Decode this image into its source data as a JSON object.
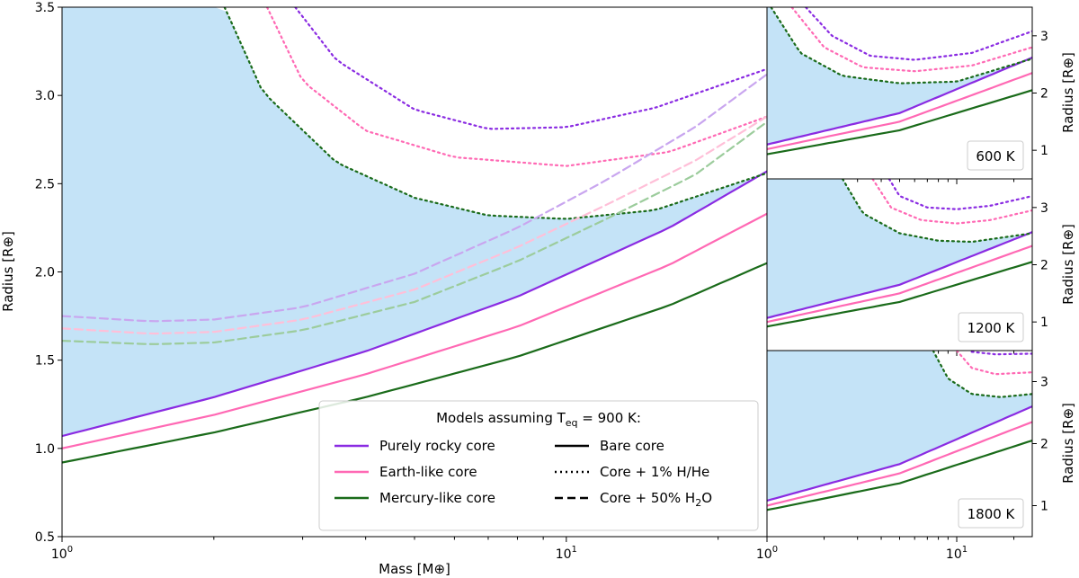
{
  "chart_data": [
    {
      "type": "line",
      "panel": "main",
      "xscale": "log",
      "xlim": [
        1,
        25
      ],
      "ylim": [
        0.5,
        3.5
      ],
      "xlabel": "Mass [M⊕]",
      "ylabel": "Radius [R⊕]",
      "xticks": [
        {
          "value": 1,
          "label": "10^0"
        },
        {
          "value": 10,
          "label": "10^1"
        }
      ],
      "yticks": [
        0.5,
        1.0,
        1.5,
        2.0,
        2.5,
        3.0,
        3.5
      ],
      "ytick_labels": [
        "0.5",
        "1.0",
        "1.5",
        "2.0",
        "2.5",
        "3.0",
        "3.5"
      ],
      "shaded_region": {
        "color": "#c4e3f7",
        "between": [
          "Purely rocky core bare",
          "Mercury-like core + 1% H/He"
        ]
      },
      "series": [
        {
          "name": "Purely rocky core bare",
          "color": "#8a2be2",
          "style": "solid",
          "x": [
            1,
            2,
            4,
            8,
            16,
            25
          ],
          "y": [
            1.07,
            1.29,
            1.55,
            1.86,
            2.25,
            2.57
          ]
        },
        {
          "name": "Earth-like core bare",
          "color": "#ff69b4",
          "style": "solid",
          "x": [
            1,
            2,
            4,
            8,
            16,
            25
          ],
          "y": [
            1.0,
            1.19,
            1.42,
            1.69,
            2.04,
            2.33
          ]
        },
        {
          "name": "Mercury-like core bare",
          "color": "#1a6b1a",
          "style": "solid",
          "x": [
            1,
            2,
            4,
            8,
            16,
            25
          ],
          "y": [
            0.92,
            1.09,
            1.29,
            1.52,
            1.81,
            2.05
          ]
        },
        {
          "name": "Purely rocky core + 1% H/He",
          "color": "#8a2be2",
          "style": "dotted",
          "x": [
            2.9,
            3.5,
            5,
            7,
            10,
            15,
            25
          ],
          "y": [
            3.5,
            3.2,
            2.92,
            2.81,
            2.82,
            2.93,
            3.15
          ]
        },
        {
          "name": "Earth-like core + 1% H/He",
          "color": "#ff69b4",
          "style": "dotted",
          "x": [
            2.55,
            3,
            4,
            6,
            10,
            16,
            25
          ],
          "y": [
            3.5,
            3.08,
            2.8,
            2.65,
            2.6,
            2.68,
            2.88
          ]
        },
        {
          "name": "Mercury-like core + 1% H/He",
          "color": "#1a6b1a",
          "style": "dotted",
          "x": [
            2.1,
            2.5,
            3.5,
            5,
            7,
            10,
            15,
            25
          ],
          "y": [
            3.5,
            3.02,
            2.62,
            2.42,
            2.32,
            2.3,
            2.35,
            2.56
          ]
        },
        {
          "name": "Purely rocky core + 50% H2O",
          "color": "#c9a6ef",
          "style": "dashed",
          "x": [
            1,
            1.5,
            2,
            3,
            5,
            8,
            12,
            18,
            25
          ],
          "y": [
            1.75,
            1.72,
            1.73,
            1.8,
            1.99,
            2.25,
            2.52,
            2.82,
            3.12
          ]
        },
        {
          "name": "Earth-like core + 50% H2O",
          "color": "#ffbfd8",
          "style": "dashed",
          "x": [
            1,
            1.5,
            2,
            3,
            5,
            8,
            12,
            18,
            25
          ],
          "y": [
            1.68,
            1.65,
            1.66,
            1.73,
            1.9,
            2.14,
            2.38,
            2.63,
            2.88
          ]
        },
        {
          "name": "Mercury-like core + 50% H2O",
          "color": "#9ccc9c",
          "style": "dashed",
          "x": [
            1,
            1.5,
            2,
            3,
            5,
            8,
            12,
            18,
            25
          ],
          "y": [
            1.61,
            1.59,
            1.6,
            1.67,
            1.83,
            2.06,
            2.3,
            2.55,
            2.85
          ]
        }
      ],
      "legend": {
        "location": "lower-right",
        "title": "Models assuming T",
        "title_sub": "eq",
        "title_suffix": " = 900 K:",
        "entries": [
          {
            "label": "Purely rocky core",
            "color": "#8a2be2",
            "style": "solid"
          },
          {
            "label": "Bare core",
            "color": "#000000",
            "style": "solid"
          },
          {
            "label": "Earth-like core",
            "color": "#ff69b4",
            "style": "solid"
          },
          {
            "label": "Core + 1% H/He",
            "color": "#000000",
            "style": "dotted"
          },
          {
            "label": "Mercury-like core",
            "color": "#1a6b1a",
            "style": "solid"
          },
          {
            "label": "Core + 50% H",
            "sub": "2",
            "suffix": "O",
            "color": "#000000",
            "style": "dashed"
          }
        ]
      }
    },
    {
      "type": "line",
      "panel": "inset-600",
      "label": "600 K",
      "xscale": "log",
      "xlim": [
        1,
        25
      ],
      "ylim": [
        0.5,
        3.5
      ],
      "ylabel": "Radius [R⊕]",
      "yticks": [
        1,
        2,
        3
      ],
      "ytick_labels": [
        "1",
        "2",
        "3"
      ],
      "shaded_region": {
        "color": "#c4e3f7"
      },
      "series": [
        {
          "name": "Purely rocky core bare",
          "color": "#8a2be2",
          "style": "solid",
          "x": [
            1,
            5,
            25
          ],
          "y": [
            1.1,
            1.65,
            2.62
          ]
        },
        {
          "name": "Earth-like core bare",
          "color": "#ff69b4",
          "style": "solid",
          "x": [
            1,
            5,
            25
          ],
          "y": [
            1.02,
            1.5,
            2.35
          ]
        },
        {
          "name": "Mercury-like core bare",
          "color": "#1a6b1a",
          "style": "solid",
          "x": [
            1,
            5,
            25
          ],
          "y": [
            0.93,
            1.35,
            2.05
          ]
        },
        {
          "name": "Purely rocky core + 1% H/He",
          "color": "#8a2be2",
          "style": "dotted",
          "x": [
            1.6,
            2.2,
            3.5,
            6,
            12,
            25
          ],
          "y": [
            3.5,
            3.0,
            2.65,
            2.58,
            2.7,
            3.08
          ]
        },
        {
          "name": "Earth-like core + 1% H/He",
          "color": "#ff69b4",
          "style": "dotted",
          "x": [
            1.35,
            2,
            3.2,
            6,
            12,
            25
          ],
          "y": [
            3.5,
            2.8,
            2.45,
            2.38,
            2.48,
            2.8
          ]
        },
        {
          "name": "Mercury-like core + 1% H/He",
          "color": "#1a6b1a",
          "style": "dotted",
          "x": [
            1.05,
            1.5,
            2.5,
            5,
            10,
            25
          ],
          "y": [
            3.5,
            2.7,
            2.3,
            2.17,
            2.2,
            2.6
          ]
        }
      ]
    },
    {
      "type": "line",
      "panel": "inset-1200",
      "label": "1200 K",
      "xscale": "log",
      "xlim": [
        1,
        25
      ],
      "ylim": [
        0.5,
        3.5
      ],
      "ylabel": "Radius [R⊕]",
      "yticks": [
        1,
        2,
        3
      ],
      "ytick_labels": [
        "1",
        "2",
        "3"
      ],
      "shaded_region": {
        "color": "#c4e3f7"
      },
      "series": [
        {
          "name": "Purely rocky core bare",
          "color": "#8a2be2",
          "style": "solid",
          "x": [
            1,
            5,
            25
          ],
          "y": [
            1.07,
            1.65,
            2.57
          ]
        },
        {
          "name": "Earth-like core bare",
          "color": "#ff69b4",
          "style": "solid",
          "x": [
            1,
            5,
            25
          ],
          "y": [
            1.0,
            1.5,
            2.33
          ]
        },
        {
          "name": "Mercury-like core bare",
          "color": "#1a6b1a",
          "style": "solid",
          "x": [
            1,
            5,
            25
          ],
          "y": [
            0.92,
            1.35,
            2.05
          ]
        },
        {
          "name": "Purely rocky core + 1% H/He",
          "color": "#8a2be2",
          "style": "dotted",
          "x": [
            4.4,
            5,
            7,
            10,
            15,
            25
          ],
          "y": [
            3.5,
            3.2,
            3.0,
            2.97,
            3.03,
            3.2
          ]
        },
        {
          "name": "Earth-like core + 1% H/He",
          "color": "#ff69b4",
          "style": "dotted",
          "x": [
            3.6,
            4.5,
            6.5,
            10,
            15,
            25
          ],
          "y": [
            3.5,
            3.0,
            2.78,
            2.72,
            2.78,
            2.95
          ]
        },
        {
          "name": "Mercury-like core + 1% H/He",
          "color": "#1a6b1a",
          "style": "dotted",
          "x": [
            2.5,
            3.2,
            5,
            8,
            12,
            25
          ],
          "y": [
            3.5,
            2.9,
            2.55,
            2.42,
            2.4,
            2.55
          ]
        }
      ]
    },
    {
      "type": "line",
      "panel": "inset-1800",
      "label": "1800 K",
      "xscale": "log",
      "xlim": [
        1,
        25
      ],
      "ylim": [
        0.5,
        3.5
      ],
      "ylabel": "Radius [R⊕]",
      "yticks": [
        1,
        2,
        3
      ],
      "ytick_labels": [
        "1",
        "2",
        "3"
      ],
      "shaded_region": {
        "color": "#c4e3f7"
      },
      "series": [
        {
          "name": "Purely rocky core bare",
          "color": "#8a2be2",
          "style": "solid",
          "x": [
            1,
            5,
            25
          ],
          "y": [
            1.08,
            1.67,
            2.6
          ]
        },
        {
          "name": "Earth-like core bare",
          "color": "#ff69b4",
          "style": "solid",
          "x": [
            1,
            5,
            25
          ],
          "y": [
            1.0,
            1.52,
            2.35
          ]
        },
        {
          "name": "Mercury-like core bare",
          "color": "#1a6b1a",
          "style": "solid",
          "x": [
            1,
            5,
            25
          ],
          "y": [
            0.93,
            1.36,
            2.05
          ]
        },
        {
          "name": "Purely rocky core + 1% H/He",
          "color": "#8a2be2",
          "style": "dotted",
          "x": [
            12,
            16,
            25
          ],
          "y": [
            3.48,
            3.44,
            3.45
          ]
        },
        {
          "name": "Earth-like core + 1% H/He",
          "color": "#ff69b4",
          "style": "dotted",
          "x": [
            10,
            12,
            16,
            25
          ],
          "y": [
            3.5,
            3.22,
            3.12,
            3.15
          ]
        },
        {
          "name": "Mercury-like core + 1% H/He",
          "color": "#1a6b1a",
          "style": "dotted",
          "x": [
            7.5,
            9,
            12,
            17,
            25
          ],
          "y": [
            3.5,
            3.05,
            2.8,
            2.75,
            2.8
          ]
        }
      ]
    }
  ]
}
